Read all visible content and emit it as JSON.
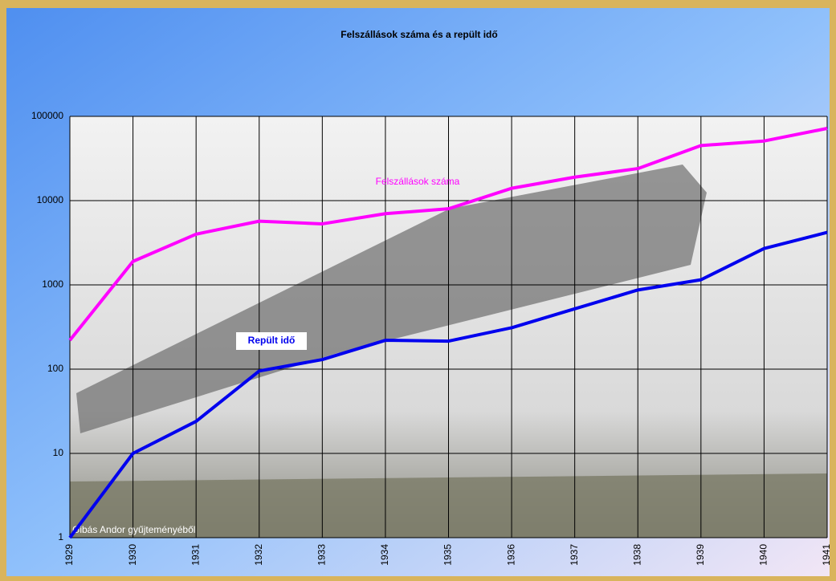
{
  "chart_data": {
    "type": "line",
    "title": "Felszállások száma és a repült idő",
    "categories": [
      "1929",
      "1930",
      "1931",
      "1932",
      "1933",
      "1934",
      "1935",
      "1936",
      "1937",
      "1938",
      "1939",
      "1940",
      "1941"
    ],
    "series": [
      {
        "name": "Felszállások száma",
        "color": "#ff00ff",
        "values": [
          220,
          1900,
          4000,
          5700,
          5300,
          7000,
          8000,
          14000,
          19000,
          24000,
          45000,
          51000,
          72000
        ]
      },
      {
        "name": "Repült idő",
        "color": "#0000ee",
        "values": [
          1,
          10,
          24,
          95,
          130,
          220,
          215,
          310,
          520,
          870,
          1150,
          2700,
          4200
        ]
      }
    ],
    "ylim": [
      1,
      100000
    ],
    "yticks": [
      1,
      10,
      100,
      1000,
      10000,
      100000
    ],
    "log_scale": true,
    "grid": true,
    "annotations": [
      "Gibás Andor gyűjteményéből"
    ]
  }
}
